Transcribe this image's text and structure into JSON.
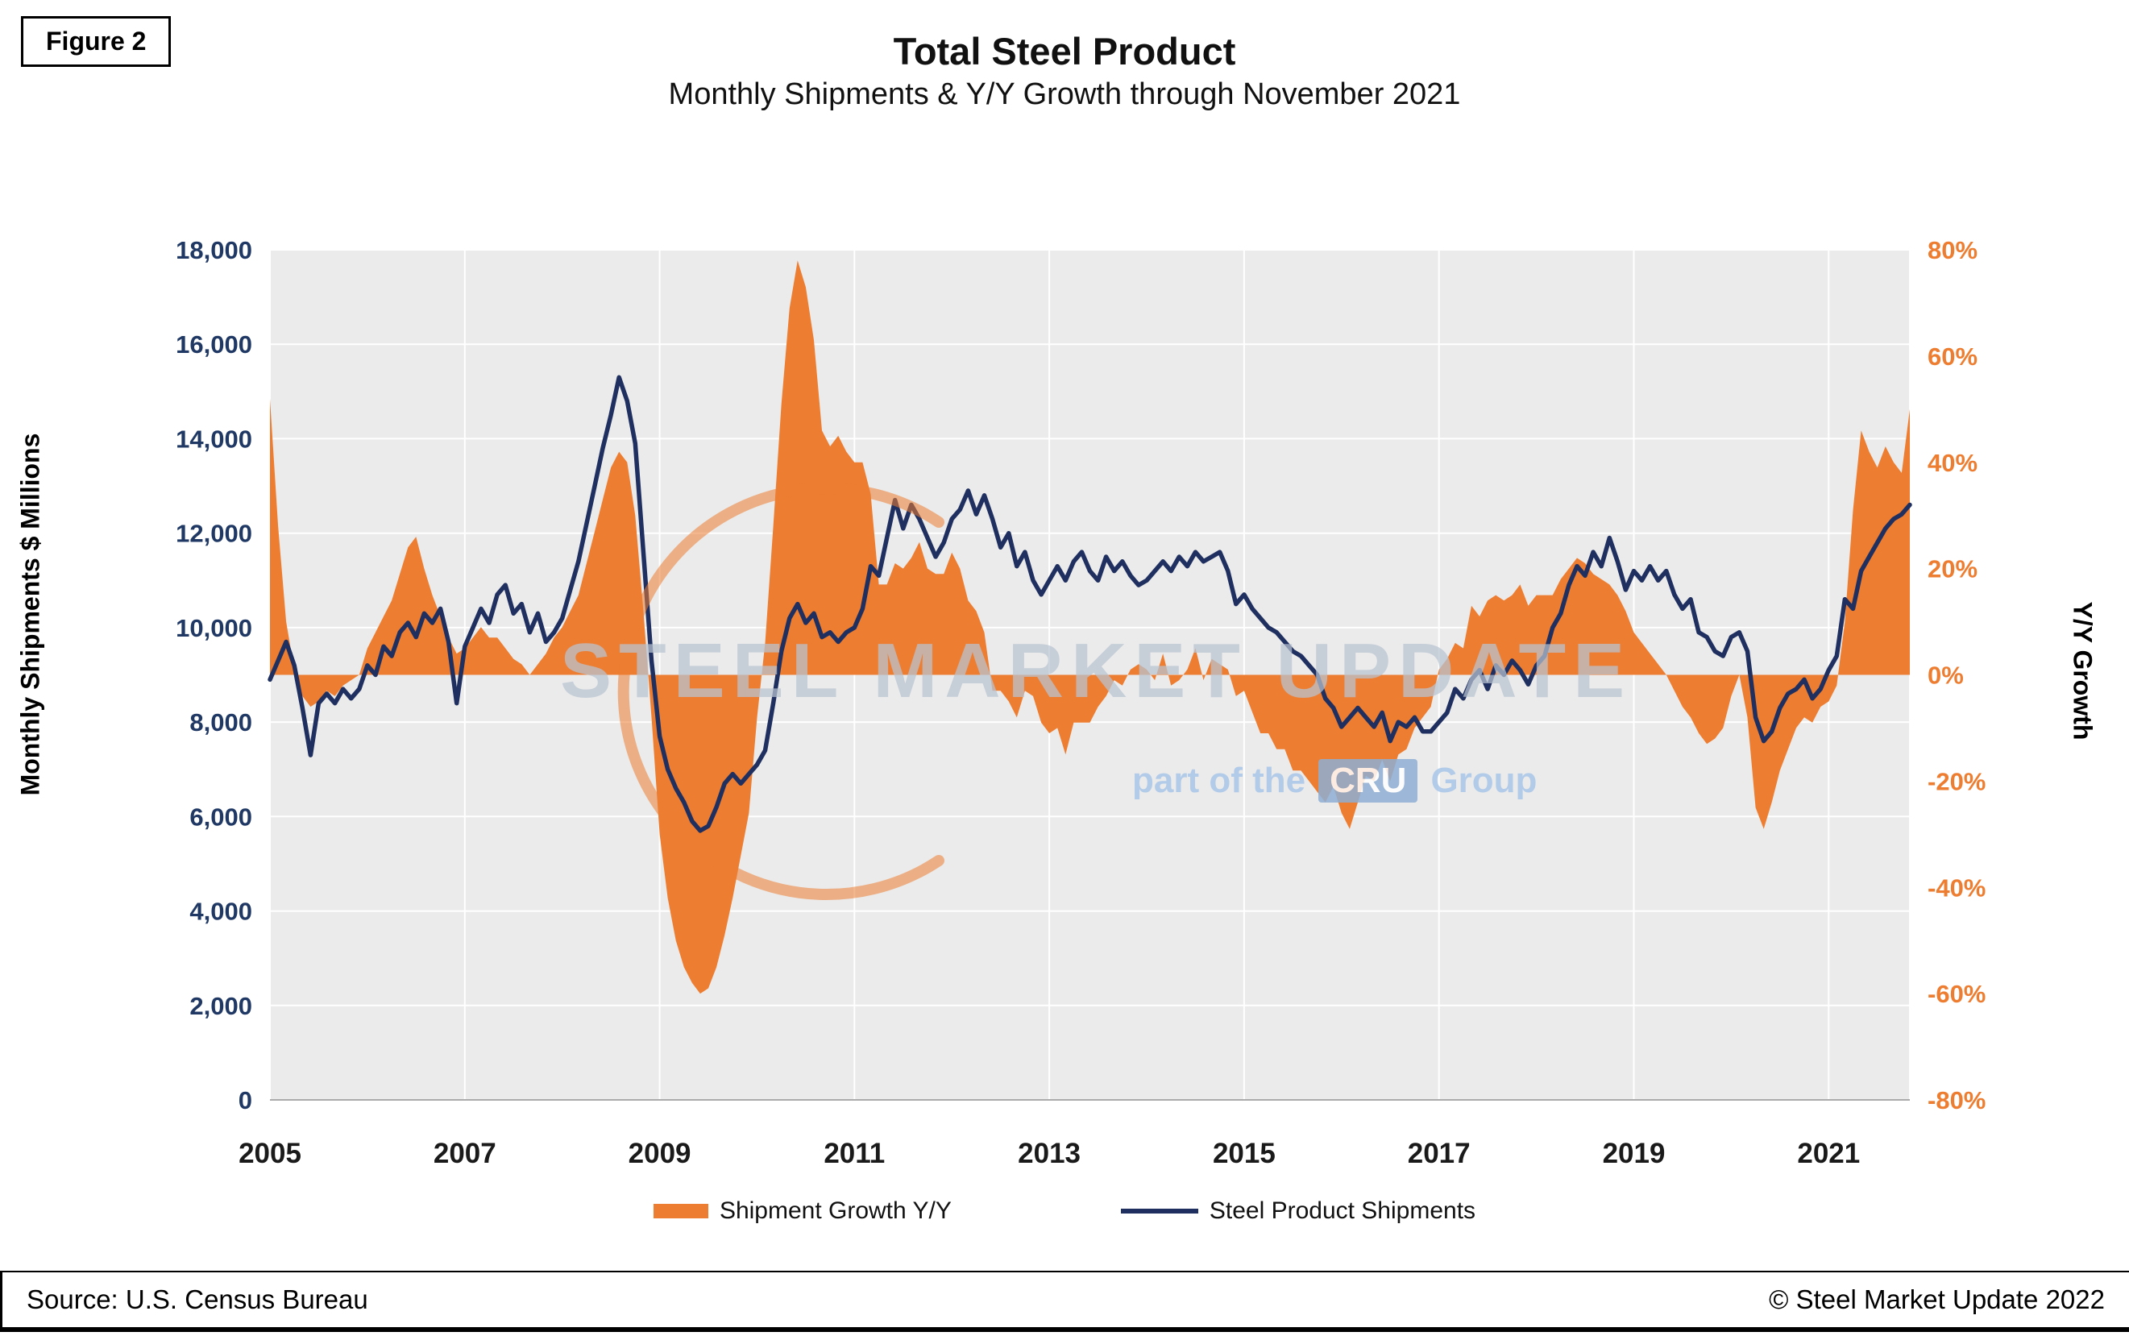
{
  "figure_label": "Figure 2",
  "title": "Total Steel Product",
  "subtitle": "Monthly Shipments & Y/Y Growth through November 2021",
  "footer": {
    "source": "Source: U.S. Census Bureau",
    "copyright": "© Steel Market Update 2022"
  },
  "watermark": {
    "line1": "STEEL MARKET UPDATE",
    "part_prefix": "part of the",
    "cru": "CRU",
    "group": "Group"
  },
  "legend": [
    {
      "label": "Shipment Growth Y/Y",
      "swatch": "area"
    },
    {
      "label": "Steel Product Shipments",
      "swatch": "line"
    }
  ],
  "colors": {
    "orange": "#ED7D31",
    "navy": "#1F3060",
    "plot_bg": "#EBEBEB",
    "grid": "#FFFFFF",
    "axis_left_text": "#1F3864",
    "axis_right_text": "#ED7D31",
    "x_text": "#1a1a1a",
    "axis_line": "#ABABAB"
  },
  "chart_data": {
    "type": "combo",
    "x": {
      "start_year": 2005,
      "start_month": 1,
      "end_label": "November 2021",
      "months_per_point": 1,
      "tick_labels": [
        "2005",
        "2007",
        "2009",
        "2011",
        "2013",
        "2015",
        "2017",
        "2019",
        "2021"
      ]
    },
    "left_axis": {
      "title": "Monthly Shipments $ Millions",
      "min": 0,
      "max": 18000,
      "step": 2000,
      "tick_labels": [
        "0",
        "2,000",
        "4,000",
        "6,000",
        "8,000",
        "10,000",
        "12,000",
        "14,000",
        "16,000",
        "18,000"
      ]
    },
    "right_axis": {
      "title": "Y/Y Growth",
      "min": -80,
      "max": 80,
      "step": 20,
      "tick_labels": [
        "-80%",
        "-60%",
        "-40%",
        "-20%",
        "0%",
        "20%",
        "40%",
        "60%",
        "80%"
      ]
    },
    "series": [
      {
        "name": "Shipment Growth Y/Y",
        "type": "area",
        "axis": "right",
        "unit": "%",
        "values": [
          52,
          28,
          10,
          1,
          -4,
          -6,
          -5,
          -3,
          -4,
          -2,
          -1,
          0,
          5,
          8,
          11,
          14,
          19,
          24,
          26,
          20,
          15,
          11,
          7,
          4,
          5,
          7,
          9,
          7,
          7,
          5,
          3,
          2,
          0,
          2,
          4,
          7,
          9,
          12,
          15,
          21,
          27,
          33,
          39,
          42,
          40,
          30,
          12,
          -8,
          -30,
          -42,
          -50,
          -55,
          -58,
          -60,
          -59,
          -55,
          -49,
          -42,
          -34,
          -26,
          -8,
          6,
          28,
          51,
          69,
          78,
          73,
          63,
          46,
          43,
          45,
          42,
          40,
          40,
          34,
          17,
          17,
          21,
          20,
          22,
          25,
          20,
          19,
          19,
          23,
          20,
          14,
          12,
          8,
          -3,
          -3,
          -5,
          -8,
          -3,
          -4,
          -9,
          -11,
          -10,
          -15,
          -9,
          -9,
          -9,
          -6,
          -4,
          -1,
          -2,
          1,
          2,
          1,
          -1,
          4,
          -2,
          -1,
          1,
          5,
          -1,
          3,
          2,
          1,
          -4,
          -3,
          -7,
          -11,
          -11,
          -14,
          -14,
          -18,
          -18,
          -20,
          -22,
          -24,
          -21,
          -26,
          -29,
          -24,
          -19,
          -20,
          -16,
          -20,
          -15,
          -14,
          -10,
          -8,
          -6,
          1,
          3,
          6,
          5,
          13,
          11,
          14,
          15,
          14,
          15,
          17,
          13,
          15,
          15,
          15,
          18,
          20,
          22,
          21,
          19,
          18,
          17,
          15,
          12,
          8,
          6,
          4,
          2,
          0,
          -3,
          -6,
          -8,
          -11,
          -13,
          -12,
          -10,
          -4,
          0,
          -8,
          -25,
          -29,
          -24,
          -18,
          -14,
          -10,
          -8,
          -9,
          -6,
          -5,
          -2,
          10,
          31,
          46,
          42,
          39,
          43,
          40,
          38,
          50
        ]
      },
      {
        "name": "Steel Product Shipments",
        "type": "line",
        "axis": "left",
        "unit": "$M",
        "values": [
          8900,
          9300,
          9700,
          9200,
          8300,
          7300,
          8400,
          8600,
          8400,
          8700,
          8500,
          8700,
          9200,
          9000,
          9600,
          9400,
          9900,
          10100,
          9800,
          10300,
          10100,
          10400,
          9700,
          8400,
          9600,
          10000,
          10400,
          10100,
          10700,
          10900,
          10300,
          10500,
          9900,
          10300,
          9700,
          9900,
          10200,
          10800,
          11400,
          12200,
          13000,
          13800,
          14500,
          15300,
          14800,
          13900,
          11600,
          9300,
          7700,
          7000,
          6600,
          6300,
          5900,
          5700,
          5800,
          6200,
          6700,
          6900,
          6700,
          6900,
          7100,
          7400,
          8400,
          9500,
          10200,
          10500,
          10100,
          10300,
          9800,
          9900,
          9700,
          9900,
          10000,
          10400,
          11300,
          11100,
          11900,
          12700,
          12100,
          12600,
          12300,
          11900,
          11500,
          11800,
          12300,
          12500,
          12900,
          12400,
          12800,
          12300,
          11700,
          12000,
          11300,
          11600,
          11000,
          10700,
          11000,
          11300,
          11000,
          11400,
          11600,
          11200,
          11000,
          11500,
          11200,
          11400,
          11100,
          10900,
          11000,
          11200,
          11400,
          11200,
          11500,
          11300,
          11600,
          11400,
          11500,
          11600,
          11200,
          10500,
          10700,
          10400,
          10200,
          10000,
          9900,
          9700,
          9500,
          9400,
          9200,
          9000,
          8500,
          8300,
          7900,
          8100,
          8300,
          8100,
          7900,
          8200,
          7600,
          8000,
          7900,
          8100,
          7800,
          7800,
          8000,
          8200,
          8700,
          8500,
          8900,
          9100,
          8700,
          9200,
          9000,
          9300,
          9100,
          8800,
          9200,
          9400,
          10000,
          10300,
          10900,
          11300,
          11100,
          11600,
          11300,
          11900,
          11400,
          10800,
          11200,
          11000,
          11300,
          11000,
          11200,
          10700,
          10400,
          10600,
          9900,
          9800,
          9500,
          9400,
          9800,
          9900,
          9500,
          8100,
          7600,
          7800,
          8300,
          8600,
          8700,
          8900,
          8500,
          8700,
          9100,
          9400,
          10600,
          10400,
          11200,
          11500,
          11800,
          12100,
          12300,
          12400,
          12600
        ]
      }
    ]
  }
}
